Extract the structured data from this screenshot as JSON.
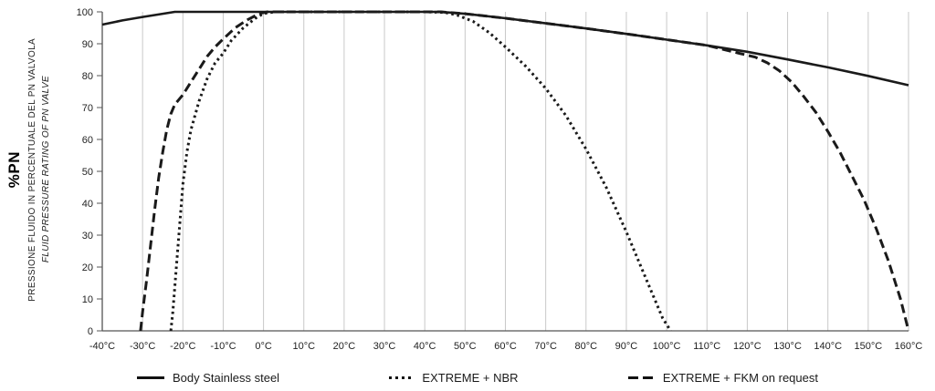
{
  "y_axis": {
    "label_pn": "%PN",
    "label_it": "PRESSIONE FLUIDO IN PERCENTUALE DEL PN VALVOLA",
    "label_en": "FLUID PRESSURE RATING OF PN VALVE"
  },
  "chart_data": {
    "type": "line",
    "title": "",
    "xlabel": "",
    "ylabel": "%PN",
    "xlim": [
      -40,
      160
    ],
    "ylim": [
      0,
      100
    ],
    "x_ticks": [
      -40,
      -30,
      -20,
      -10,
      0,
      10,
      20,
      30,
      40,
      50,
      60,
      70,
      80,
      90,
      100,
      110,
      120,
      130,
      140,
      150,
      160
    ],
    "x_tick_labels": [
      "-40°C",
      "-30°C",
      "-20°C",
      "-10°C",
      "0°C",
      "10°C",
      "20°C",
      "30°C",
      "40°C",
      "50°C",
      "60°C",
      "70°C",
      "80°C",
      "90°C",
      "100°C",
      "110°C",
      "120°C",
      "130°C",
      "140°C",
      "150°C",
      "160°C"
    ],
    "y_ticks": [
      0,
      10,
      20,
      30,
      40,
      50,
      60,
      70,
      80,
      90,
      100
    ],
    "grid": "vertical",
    "legend_position": "bottom",
    "colors": {
      "line": "#1a1a1a",
      "grid": "#c9c9c9",
      "axis": "#555555"
    },
    "series": [
      {
        "name": "Body Stainless steel",
        "line_style": "solid",
        "points": [
          [
            -40,
            96
          ],
          [
            -35,
            97.3
          ],
          [
            -30,
            98.4
          ],
          [
            -25,
            99.4
          ],
          [
            -22,
            100
          ],
          [
            0,
            100
          ],
          [
            20,
            100
          ],
          [
            44,
            100
          ],
          [
            50,
            99.4
          ],
          [
            60,
            98
          ],
          [
            70,
            96.4
          ],
          [
            80,
            94.8
          ],
          [
            90,
            93.1
          ],
          [
            100,
            91.3
          ],
          [
            110,
            89.5
          ],
          [
            120,
            87.5
          ],
          [
            130,
            85.1
          ],
          [
            140,
            82.6
          ],
          [
            150,
            79.9
          ],
          [
            160,
            77
          ]
        ]
      },
      {
        "name": "EXTREME + NBR",
        "line_style": "dotted",
        "points": [
          [
            -23,
            0
          ],
          [
            -22.5,
            6
          ],
          [
            -22,
            14
          ],
          [
            -21,
            30
          ],
          [
            -20,
            46
          ],
          [
            -19,
            56
          ],
          [
            -18,
            63
          ],
          [
            -16,
            72
          ],
          [
            -14,
            79
          ],
          [
            -12,
            84
          ],
          [
            -10,
            87
          ],
          [
            -8,
            91
          ],
          [
            -5,
            95
          ],
          [
            -2,
            98
          ],
          [
            0,
            99.5
          ],
          [
            3,
            100
          ],
          [
            40,
            100
          ],
          [
            45,
            99.8
          ],
          [
            48,
            99
          ],
          [
            52,
            97
          ],
          [
            56,
            93.5
          ],
          [
            60,
            89
          ],
          [
            65,
            83
          ],
          [
            70,
            76
          ],
          [
            75,
            67.5
          ],
          [
            80,
            57
          ],
          [
            85,
            45
          ],
          [
            90,
            31
          ],
          [
            95,
            16
          ],
          [
            99,
            4
          ],
          [
            101,
            0
          ]
        ]
      },
      {
        "name": "EXTREME + FKM on request",
        "line_style": "dashed",
        "points": [
          [
            -30.5,
            0
          ],
          [
            -30,
            6
          ],
          [
            -29,
            16
          ],
          [
            -28,
            27
          ],
          [
            -27,
            38
          ],
          [
            -26,
            48
          ],
          [
            -25,
            56
          ],
          [
            -24,
            63
          ],
          [
            -23,
            68
          ],
          [
            -22,
            71
          ],
          [
            -21,
            72.5
          ],
          [
            -20,
            74
          ],
          [
            -18,
            78
          ],
          [
            -16,
            82
          ],
          [
            -14,
            86
          ],
          [
            -12,
            89
          ],
          [
            -10,
            91.5
          ],
          [
            -7,
            95
          ],
          [
            -4,
            97.5
          ],
          [
            -1,
            99.5
          ],
          [
            1,
            100
          ],
          [
            44,
            100
          ],
          [
            50,
            99.4
          ],
          [
            60,
            98
          ],
          [
            70,
            96.4
          ],
          [
            80,
            94.8
          ],
          [
            90,
            93.1
          ],
          [
            100,
            91.3
          ],
          [
            110,
            89.5
          ],
          [
            118,
            87
          ],
          [
            122,
            85.8
          ],
          [
            125,
            84
          ],
          [
            128,
            81.5
          ],
          [
            131,
            78
          ],
          [
            134,
            73.5
          ],
          [
            137,
            68.5
          ],
          [
            140,
            62.5
          ],
          [
            143,
            56
          ],
          [
            146,
            48.5
          ],
          [
            149,
            41
          ],
          [
            152,
            32
          ],
          [
            155,
            22
          ],
          [
            158,
            10
          ],
          [
            160,
            0
          ]
        ]
      }
    ]
  }
}
